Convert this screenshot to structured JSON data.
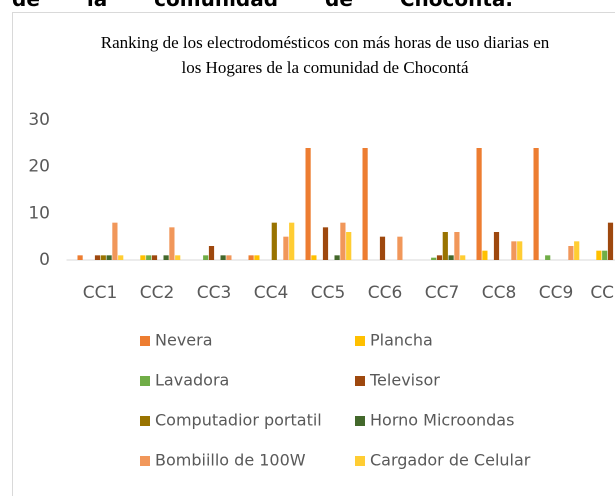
{
  "header_text": "de la comunidad de Chocontá.",
  "chart_data": {
    "type": "bar",
    "title": "Ranking de los electrodomésticos con más horas de uso diarias en los Hogares de la comunidad de Chocontá",
    "categories": [
      "CC1",
      "CC2",
      "CC3",
      "CC4",
      "CC5",
      "CC6",
      "CC7",
      "CC8",
      "CC9",
      "CC10"
    ],
    "series": [
      {
        "name": "Nevera",
        "color": "#ed7d31",
        "values": [
          1,
          0,
          0,
          1,
          24,
          24,
          0,
          24,
          24,
          0
        ]
      },
      {
        "name": "Plancha",
        "color": "#ffc000",
        "values": [
          0,
          1,
          0,
          1,
          1,
          0,
          0,
          2,
          0,
          2
        ]
      },
      {
        "name": "Lavadora",
        "color": "#70ad47",
        "values": [
          0,
          1,
          1,
          0,
          0,
          0,
          0.5,
          0,
          1,
          2
        ]
      },
      {
        "name": "Televisor",
        "color": "#9e480e",
        "values": [
          1,
          1,
          3,
          0,
          7,
          5,
          1,
          6,
          0,
          8
        ]
      },
      {
        "name": "Computadior portatil",
        "color": "#997300",
        "values": [
          1,
          0,
          0,
          8,
          0,
          0,
          6,
          0,
          0,
          0
        ]
      },
      {
        "name": "Horno Microondas",
        "color": "#43682b",
        "values": [
          1,
          1,
          1,
          0,
          1,
          0,
          1,
          0,
          0,
          0
        ]
      },
      {
        "name": "Bombiillo de 100W",
        "color": "#f1975a",
        "values": [
          8,
          7,
          1,
          5,
          8,
          5,
          6,
          4,
          3,
          0
        ]
      },
      {
        "name": "Cargador de Celular",
        "color": "#ffcd33",
        "values": [
          1,
          1,
          0,
          8,
          6,
          0,
          1,
          4,
          4,
          0
        ]
      }
    ],
    "ylim": [
      0,
      30
    ],
    "yticks": [
      0,
      10,
      20,
      30
    ],
    "grid": false,
    "legend": "bottom"
  }
}
